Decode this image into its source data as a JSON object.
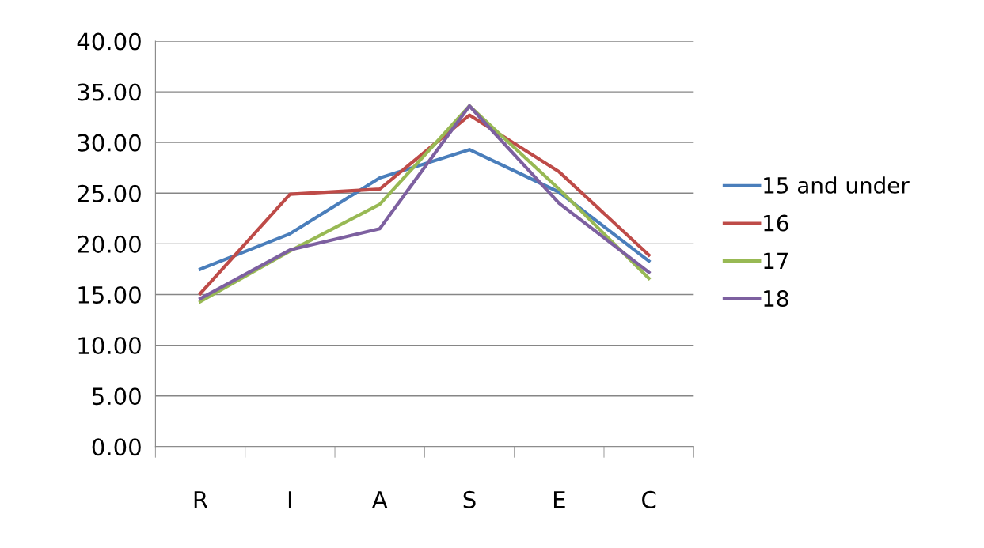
{
  "chart_data": {
    "type": "line",
    "categories": [
      "R",
      "I",
      "A",
      "S",
      "E",
      "C"
    ],
    "series": [
      {
        "name": "15 and under",
        "color": "#4a7ebb",
        "values": [
          17.5,
          21.0,
          26.5,
          29.3,
          25.1,
          18.3
        ]
      },
      {
        "name": "16",
        "color": "#be4b48",
        "values": [
          15.1,
          24.9,
          25.4,
          32.7,
          27.1,
          18.9
        ]
      },
      {
        "name": "17",
        "color": "#98b954",
        "values": [
          14.3,
          19.3,
          23.9,
          33.6,
          25.4,
          16.6
        ]
      },
      {
        "name": "18",
        "color": "#7d60a0",
        "values": [
          14.6,
          19.4,
          21.5,
          33.6,
          24.0,
          17.2
        ]
      }
    ],
    "ylim": [
      0,
      40
    ],
    "yticks": [
      {
        "value": 0,
        "label": "0.00"
      },
      {
        "value": 5,
        "label": "5.00"
      },
      {
        "value": 10,
        "label": "10.00"
      },
      {
        "value": 15,
        "label": "15.00"
      },
      {
        "value": 20,
        "label": "20.00"
      },
      {
        "value": 25,
        "label": "25.00"
      },
      {
        "value": 30,
        "label": "30.00"
      },
      {
        "value": 35,
        "label": "35.00"
      },
      {
        "value": 40,
        "label": "40.00"
      }
    ],
    "grid": "y",
    "legend": "right",
    "marker": "none",
    "line_style": "solid"
  }
}
